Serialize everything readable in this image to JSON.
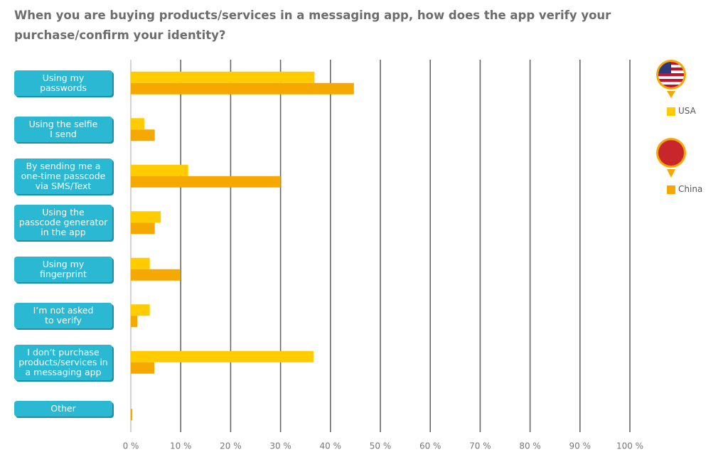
{
  "chart_data": {
    "type": "bar",
    "orientation": "horizontal",
    "title": "When you are buying products/services in a messaging app, how does the app verify your purchase/confirm your identity?",
    "categories": [
      "Using my\npasswords",
      "Using the selfie\nI send",
      "By sending me a\none-time passcode\nvia SMS/Text",
      "Using the\npasscode generator\nin the app",
      "Using my\nfingerprint",
      "I’m not asked\nto verify",
      "I don’t purchase\nproducts/services in\na messaging app",
      "Other"
    ],
    "series": [
      {
        "name": "USA",
        "color": "#ffcc00",
        "values": [
          36.8,
          2.7,
          11.5,
          6,
          3.8,
          3.8,
          36.6,
          0
        ]
      },
      {
        "name": "China",
        "color": "#f5a800",
        "values": [
          44.7,
          4.8,
          30,
          4.8,
          10,
          1.3,
          4.7,
          0.3
        ]
      }
    ],
    "xlim": [
      0,
      100
    ],
    "xticks": [
      {
        "value": 0,
        "label": "0 %"
      },
      {
        "value": 10,
        "label": "10 %"
      },
      {
        "value": 20,
        "label": "20 %"
      },
      {
        "value": 30,
        "label": "30 %"
      },
      {
        "value": 40,
        "label": "40 %"
      },
      {
        "value": 50,
        "label": "50 %"
      },
      {
        "value": 60,
        "label": "60 %"
      },
      {
        "value": 70,
        "label": "70 %"
      },
      {
        "value": 80,
        "label": "80 %"
      },
      {
        "value": 90,
        "label": "90 %"
      },
      {
        "value": 100,
        "label": "100 %"
      }
    ],
    "grid": true
  }
}
